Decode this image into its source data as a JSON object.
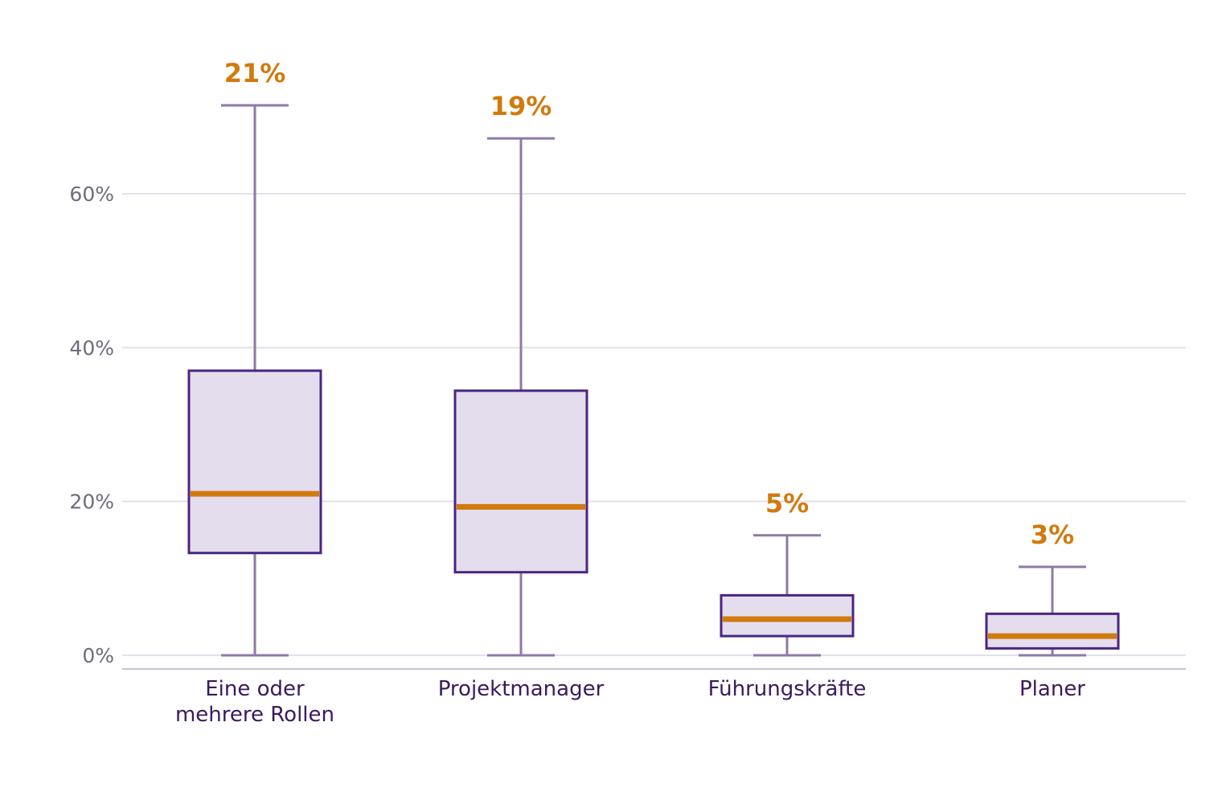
{
  "chart_data": {
    "type": "box",
    "title": "",
    "xlabel": "",
    "ylabel": "",
    "ylim": [
      0,
      75
    ],
    "yticks": [
      0,
      20,
      40,
      60
    ],
    "ytick_labels": [
      "0%",
      "20%",
      "40%",
      "60%"
    ],
    "grid": true,
    "categories": [
      [
        "Eine oder",
        "mehrere Rollen"
      ],
      [
        "Projektmanager"
      ],
      [
        "Führungskräfte"
      ],
      [
        "Planer"
      ]
    ],
    "boxes": [
      {
        "min": 0,
        "q1": 13.3,
        "median": 21.0,
        "q3": 37.0,
        "max": 71.5,
        "label": "21%"
      },
      {
        "min": 0,
        "q1": 10.8,
        "median": 19.3,
        "q3": 34.4,
        "max": 67.2,
        "label": "19%"
      },
      {
        "min": 0,
        "q1": 2.5,
        "median": 4.7,
        "q3": 7.8,
        "max": 15.6,
        "label": "5%"
      },
      {
        "min": 0,
        "q1": 0.9,
        "median": 2.5,
        "q3": 5.4,
        "max": 11.5,
        "label": "3%"
      }
    ],
    "colors": {
      "box_fill": "#e4dded",
      "box_stroke": "#4a2580",
      "whisker": "#8e7aa8",
      "median": "#d17a0d",
      "grid": "#e2e0ea",
      "axis": "#c8c2d4"
    }
  }
}
